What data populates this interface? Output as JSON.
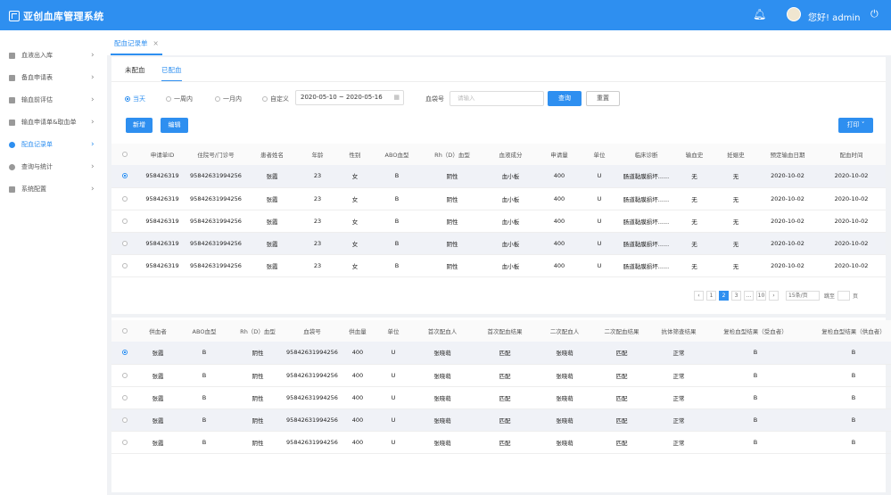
{
  "header": {
    "title": "亚创血库管理系统",
    "greeting": "您好! admin"
  },
  "sidebar": {
    "items": [
      {
        "label": "血液出入库"
      },
      {
        "label": "备血申请表"
      },
      {
        "label": "输血前评估"
      },
      {
        "label": "输血申请单&取血单"
      },
      {
        "label": "配血记录单"
      },
      {
        "label": "查询与统计"
      },
      {
        "label": "系统配置"
      }
    ]
  },
  "tabs": {
    "active": "配血记录单",
    "close": "×"
  },
  "subtabs": [
    "未配血",
    "已配血"
  ],
  "filters": {
    "ranges": [
      "当天",
      "一周内",
      "一月内",
      "自定义"
    ],
    "date_range": "2020-05-10 ~ 2020-05-16",
    "bag_label": "血袋号",
    "bag_placeholder": "请输入",
    "query": "查询",
    "reset": "重置"
  },
  "actions": {
    "add": "新增",
    "edit": "编辑",
    "print": "打印 ˅"
  },
  "table1": {
    "headers": [
      "申请单ID",
      "住院号/门诊号",
      "患者姓名",
      "年龄",
      "性别",
      "ABO血型",
      "Rh（D）血型",
      "血液成分",
      "申请量",
      "单位",
      "临床诊断",
      "输血史",
      "妊娠史",
      "预定输血日期",
      "配血时间"
    ],
    "rows": [
      [
        "958426319",
        "95842631994256",
        "张霞",
        "23",
        "女",
        "B",
        "阴性",
        "血小板",
        "400",
        "U",
        "肠道黏膜损坏......",
        "无",
        "无",
        "2020-10-02",
        "2020-10-02"
      ],
      [
        "958426319",
        "95842631994256",
        "张霞",
        "23",
        "女",
        "B",
        "阴性",
        "血小板",
        "400",
        "U",
        "肠道黏膜损坏......",
        "无",
        "无",
        "2020-10-02",
        "2020-10-02"
      ],
      [
        "958426319",
        "95842631994256",
        "张霞",
        "23",
        "女",
        "B",
        "阴性",
        "血小板",
        "400",
        "U",
        "肠道黏膜损坏......",
        "无",
        "无",
        "2020-10-02",
        "2020-10-02"
      ],
      [
        "958426319",
        "95842631994256",
        "张霞",
        "23",
        "女",
        "B",
        "阴性",
        "血小板",
        "400",
        "U",
        "肠道黏膜损坏......",
        "无",
        "无",
        "2020-10-02",
        "2020-10-02"
      ],
      [
        "958426319",
        "95842631994256",
        "张霞",
        "23",
        "女",
        "B",
        "阴性",
        "血小板",
        "400",
        "U",
        "肠道黏膜损坏......",
        "无",
        "无",
        "2020-10-02",
        "2020-10-02"
      ]
    ]
  },
  "pager": {
    "pages": [
      "1",
      "2",
      "3",
      "...",
      "10"
    ],
    "size": "15条/页",
    "jump": "跳至",
    "unit": "页"
  },
  "table2": {
    "headers": [
      "供血者",
      "ABO血型",
      "Rh（D）血型",
      "血袋号",
      "供血量",
      "单位",
      "首次配血人",
      "首次配血结果",
      "二次配血人",
      "二次配血结果",
      "抗体筛查结果",
      "复检血型结果（受血者）",
      "复检血型结果（供血者）"
    ],
    "rows": [
      [
        "张霞",
        "B",
        "阴性",
        "95842631994256",
        "400",
        "U",
        "张晓萌",
        "匹配",
        "张晓萌",
        "匹配",
        "正常",
        "B",
        "B"
      ],
      [
        "张霞",
        "B",
        "阴性",
        "95842631994256",
        "400",
        "U",
        "张晓萌",
        "匹配",
        "张晓萌",
        "匹配",
        "正常",
        "B",
        "B"
      ],
      [
        "张霞",
        "B",
        "阴性",
        "95842631994256",
        "400",
        "U",
        "张晓萌",
        "匹配",
        "张晓萌",
        "匹配",
        "正常",
        "B",
        "B"
      ],
      [
        "张霞",
        "B",
        "阴性",
        "95842631994256",
        "400",
        "U",
        "张晓萌",
        "匹配",
        "张晓萌",
        "匹配",
        "正常",
        "B",
        "B"
      ],
      [
        "张霞",
        "B",
        "阴性",
        "95842631994256",
        "400",
        "U",
        "张晓萌",
        "匹配",
        "张晓萌",
        "匹配",
        "正常",
        "B",
        "B"
      ]
    ]
  }
}
